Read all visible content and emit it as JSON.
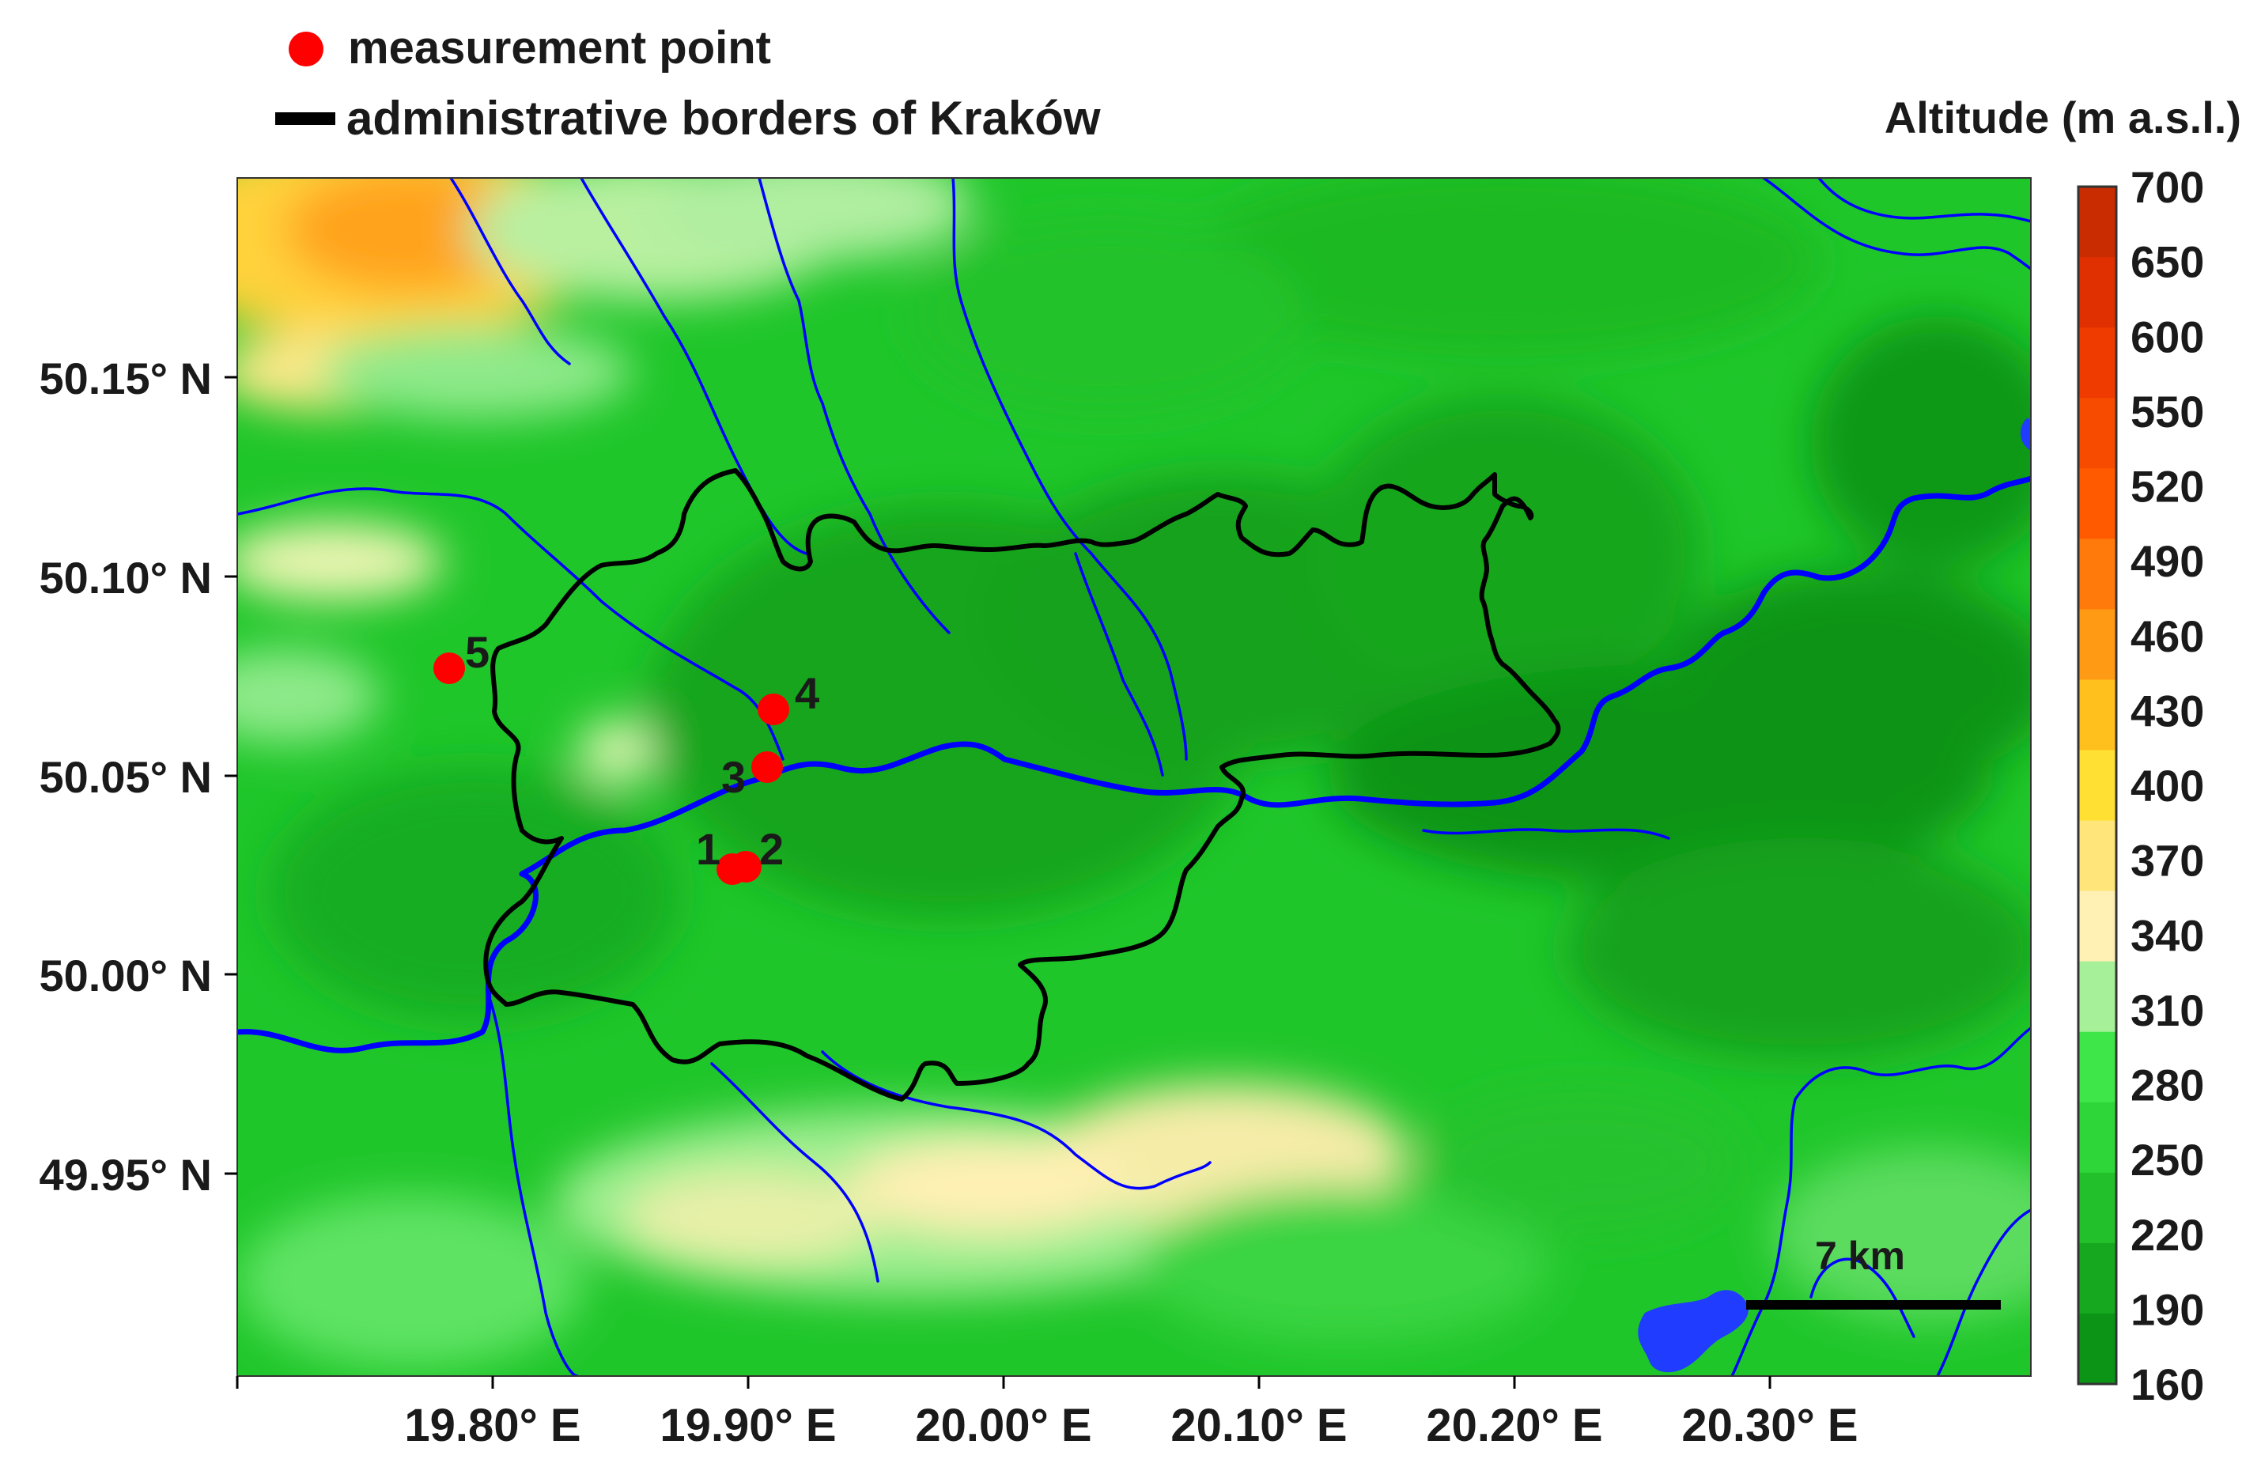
{
  "legend": {
    "point_label": "measurement point",
    "border_label": "administrative borders of Kraków",
    "point_color": "#ff0000",
    "border_color": "#000000"
  },
  "colorbar": {
    "title": "Altitude (m a.s.l.)",
    "ticks": [
      "700",
      "650",
      "600",
      "550",
      "520",
      "490",
      "460",
      "430",
      "400",
      "370",
      "340",
      "310",
      "280",
      "250",
      "220",
      "190",
      "160"
    ],
    "colors": [
      "#c92c00",
      "#e02f00",
      "#ef3a00",
      "#f74b00",
      "#ff5a00",
      "#ff7a0a",
      "#ff9a14",
      "#ffbf1c",
      "#ffe033",
      "#ffe57a",
      "#fff0b3",
      "#a6f09a",
      "#3fe64a",
      "#2ed639",
      "#22c12c",
      "#16a81f",
      "#0c9417"
    ]
  },
  "axes": {
    "lat_labels": [
      "50.15° N",
      "50.10° N",
      "50.05° N",
      "50.00° N",
      "49.95° N"
    ],
    "lon_labels": [
      "19.80° E",
      "19.90° E",
      "20.00° E",
      "20.10° E",
      "20.20° E",
      "20.30° E"
    ]
  },
  "points": [
    {
      "id": "1",
      "lat": 50.025,
      "lon": 19.896
    },
    {
      "id": "2",
      "lat": 50.026,
      "lon": 19.899
    },
    {
      "id": "3",
      "lat": 50.051,
      "lon": 19.906
    },
    {
      "id": "4",
      "lat": 50.066,
      "lon": 19.911
    },
    {
      "id": "5",
      "lat": 50.077,
      "lon": 19.784
    }
  ],
  "scale_bar": {
    "label": "7 km"
  },
  "colors": {
    "river": "#0000ff",
    "lake": "#1f3cff",
    "lowland": "#0c9417",
    "highland": "#ff9a14"
  }
}
